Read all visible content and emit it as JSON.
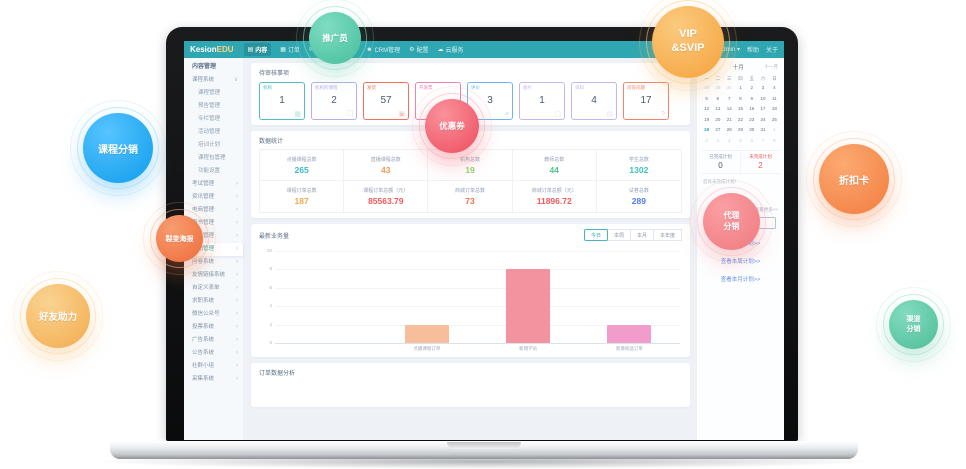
{
  "colors": {
    "topbar_teal": "#2fa7b2",
    "accent_teal": "#3bb8c4",
    "link_blue": "#5b8fe8",
    "alert_red": "#f05a5a",
    "bar_peach": "#f7be9c",
    "bar_rose": "#f2939f",
    "bar_pink": "#f19ccb"
  },
  "ui": {
    "chevron_right": "›",
    "caret_down": "∨",
    "caret_user": "▾",
    "refresh_glyph": "↻"
  },
  "bubbles": {
    "promoter": "推广员",
    "vip": [
      "VIP",
      "&SVIP"
    ],
    "course_distribution": "课程分销",
    "coupon": "优惠券",
    "discount_card": "折扣卡",
    "fission_poster": "裂变海报",
    "agent_distribution": [
      "代理",
      "分销"
    ],
    "friend_boost": "好友助力",
    "channel_distribution": [
      "渠道",
      "分销"
    ]
  },
  "topbar": {
    "logo1": "Kesion",
    "logo2": "EDU",
    "nav": [
      {
        "glyph": "▤",
        "label": "内容"
      },
      {
        "glyph": "▦",
        "label": "订单"
      },
      {
        "glyph": "✉",
        "label": "互动"
      },
      {
        "glyph": "☺",
        "label": "用户"
      },
      {
        "glyph": "☻",
        "label": "CRM管理"
      },
      {
        "glyph": "⚙",
        "label": "配置"
      },
      {
        "glyph": "☁",
        "label": "云服务"
      }
    ],
    "user": "admin",
    "links": [
      "帮助",
      "关于"
    ]
  },
  "sidebar": {
    "items": [
      {
        "label": "内容管理"
      },
      {
        "label": "课程系统"
      },
      {
        "label": "课程管理"
      },
      {
        "label": "预告管理"
      },
      {
        "label": "专栏管理"
      },
      {
        "label": "活动管理"
      },
      {
        "label": "培训计划"
      },
      {
        "label": "课程包管理"
      },
      {
        "label": "功能设置"
      },
      {
        "label": "考试管理"
      },
      {
        "label": "资讯管理"
      },
      {
        "label": "电商管理"
      },
      {
        "label": "图书管理"
      },
      {
        "label": "会员管理"
      },
      {
        "label": "营销管理"
      },
      {
        "label": "问卷系统"
      },
      {
        "label": "友情链接系统"
      },
      {
        "label": "自定义表单"
      },
      {
        "label": "求职系统"
      },
      {
        "label": "微信公众号"
      },
      {
        "label": "投票系统"
      },
      {
        "label": "广告系统"
      },
      {
        "label": "公告系统"
      },
      {
        "label": "社群小组"
      },
      {
        "label": "采集系统"
      }
    ]
  },
  "review": {
    "title": "待审核事项",
    "cards": [
      {
        "label": "机构",
        "value": "1",
        "glyph": "▦"
      },
      {
        "label": "机构的课程",
        "value": "2",
        "glyph": "❒"
      },
      {
        "label": "发货",
        "value": "57",
        "glyph": "▣"
      },
      {
        "label": "开发票",
        "value": "",
        "glyph": "▤"
      },
      {
        "label": "评价",
        "value": "3",
        "glyph": "≡"
      },
      {
        "label": "图片",
        "value": "1",
        "glyph": "▢"
      },
      {
        "label": "资料",
        "value": "4",
        "glyph": "▤"
      },
      {
        "label": "问答问题",
        "value": "17",
        "glyph": "?"
      }
    ]
  },
  "stats": {
    "title": "数据统计",
    "cells": [
      {
        "label": "点播课程总数",
        "value": "265"
      },
      {
        "label": "直播课程总数",
        "value": "43"
      },
      {
        "label": "机构总数",
        "value": "19"
      },
      {
        "label": "教师总数",
        "value": "44"
      },
      {
        "label": "学生总数",
        "value": "1302"
      },
      {
        "label": "课程订单总数",
        "value": "187"
      },
      {
        "label": "课程订单总额（元）",
        "value": "85563.79"
      },
      {
        "label": "商城订单总数",
        "value": "73"
      },
      {
        "label": "商城订单总额（元）",
        "value": "11896.72"
      },
      {
        "label": "试卷总数",
        "value": "289"
      }
    ]
  },
  "chart_data": {
    "type": "bar",
    "title": "最新业务量",
    "tabs": [
      "今日",
      "本周",
      "本月",
      "本年度"
    ],
    "active_tab": "今日",
    "categories": [
      "",
      "点播课程订单",
      "新增学员",
      "新增商品订单"
    ],
    "values": [
      0,
      2,
      8,
      2
    ],
    "colors": [
      "transparent",
      "#f7be9c",
      "#f2939f",
      "#f19ccb"
    ],
    "yticks": [
      "10",
      "8",
      "6",
      "4",
      "2",
      "0"
    ],
    "ylim": [
      0,
      10
    ],
    "grid": true,
    "legend": false
  },
  "orders": {
    "title": "订单数据分析"
  },
  "calendar": {
    "prev": "九月",
    "month": "十月",
    "next": "十一月",
    "weekdays": [
      "一",
      "二",
      "三",
      "四",
      "五",
      "六",
      "日"
    ],
    "weeks": [
      [
        "28",
        "29",
        "30",
        "1",
        "2",
        "3",
        "4"
      ],
      [
        "5",
        "6",
        "7",
        "8",
        "9",
        "10",
        "11"
      ],
      [
        "12",
        "13",
        "14",
        "15",
        "16",
        "17",
        "18"
      ],
      [
        "19",
        "20",
        "21",
        "22",
        "23",
        "24",
        "25"
      ],
      [
        "26",
        "27",
        "28",
        "29",
        "30",
        "31",
        "1"
      ],
      [
        "2",
        "3",
        "4",
        "5",
        "6",
        "7",
        "8"
      ]
    ],
    "today": "26"
  },
  "plans": {
    "done_label": "已完成计划",
    "done_value": "0",
    "undone_label": "未完成计划",
    "undone_value": "2",
    "note": "您有未完成计划！",
    "more": "查看更多>>",
    "write_button": "写工作计划",
    "links": [
      "查看本日计划>>",
      "查看本周计划>>",
      "查看本月计划>>"
    ]
  }
}
